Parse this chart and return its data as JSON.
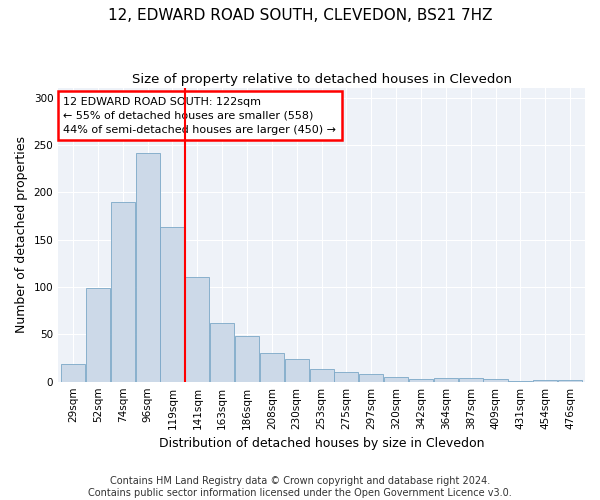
{
  "title": "12, EDWARD ROAD SOUTH, CLEVEDON, BS21 7HZ",
  "subtitle": "Size of property relative to detached houses in Clevedon",
  "xlabel": "Distribution of detached houses by size in Clevedon",
  "ylabel": "Number of detached properties",
  "categories": [
    "29sqm",
    "52sqm",
    "74sqm",
    "96sqm",
    "119sqm",
    "141sqm",
    "163sqm",
    "186sqm",
    "208sqm",
    "230sqm",
    "253sqm",
    "275sqm",
    "297sqm",
    "320sqm",
    "342sqm",
    "364sqm",
    "387sqm",
    "409sqm",
    "431sqm",
    "454sqm",
    "476sqm"
  ],
  "values": [
    19,
    99,
    190,
    241,
    163,
    110,
    62,
    48,
    30,
    24,
    13,
    10,
    8,
    5,
    3,
    4,
    4,
    3,
    1,
    2,
    2
  ],
  "bar_color": "#ccd9e8",
  "bar_edge_color": "#7ba7c7",
  "property_line_x": 4.5,
  "annotation_text_line1": "12 EDWARD ROAD SOUTH: 122sqm",
  "annotation_text_line2": "← 55% of detached houses are smaller (558)",
  "annotation_text_line3": "44% of semi-detached houses are larger (450) →",
  "annotation_box_color": "white",
  "annotation_box_edge_color": "red",
  "vline_color": "red",
  "ylim": [
    0,
    310
  ],
  "yticks": [
    0,
    50,
    100,
    150,
    200,
    250,
    300
  ],
  "footer": "Contains HM Land Registry data © Crown copyright and database right 2024.\nContains public sector information licensed under the Open Government Licence v3.0.",
  "bg_color": "#ffffff",
  "plot_bg_color": "#eef2f8",
  "grid_color": "#ffffff",
  "title_fontsize": 11,
  "subtitle_fontsize": 9.5,
  "tick_fontsize": 7.5,
  "label_fontsize": 9,
  "annotation_fontsize": 8,
  "footer_fontsize": 7
}
